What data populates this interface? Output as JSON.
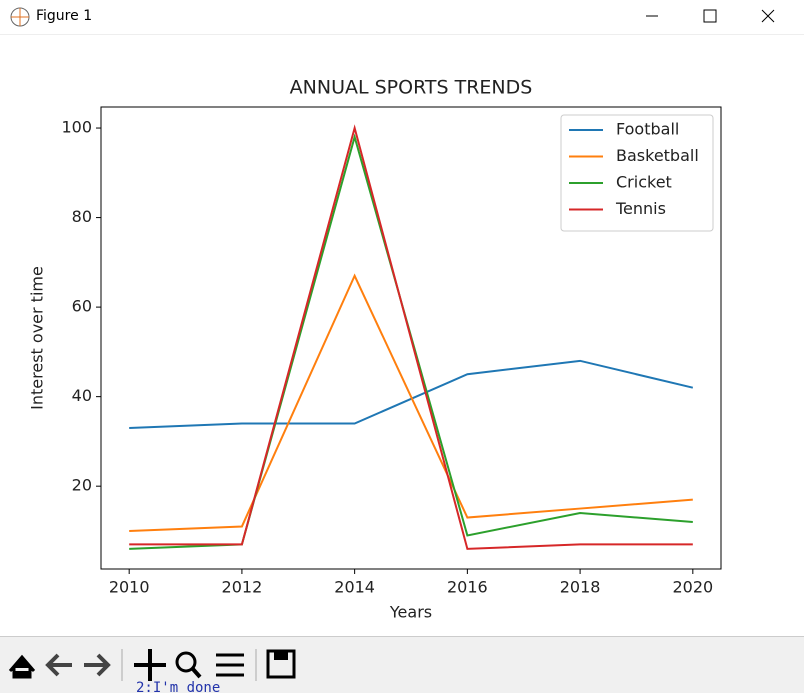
{
  "window": {
    "title": "Figure 1"
  },
  "chart_data": {
    "type": "line",
    "title": "ANNUAL SPORTS TRENDS",
    "x_label": "Years",
    "y_label": "Interest over time",
    "x": [
      2010,
      2012,
      2014,
      2016,
      2018,
      2020
    ],
    "series": [
      {
        "name": "Football",
        "color": "#1f77b4",
        "values": [
          33,
          34,
          34,
          45,
          48,
          42
        ]
      },
      {
        "name": "Basketball",
        "color": "#ff7f0e",
        "values": [
          10,
          11,
          67,
          13,
          15,
          17
        ]
      },
      {
        "name": "Cricket",
        "color": "#2ca02c",
        "values": [
          6,
          7,
          98,
          9,
          14,
          12
        ]
      },
      {
        "name": "Tennis",
        "color": "#d62728",
        "values": [
          7,
          7,
          100,
          6,
          7,
          7
        ]
      }
    ],
    "xlim": [
      2009.5,
      2020.5
    ],
    "xticks": [
      2010,
      2012,
      2014,
      2016,
      2018,
      2020
    ],
    "ylim": [
      1.5,
      104.7
    ],
    "yticks": [
      20,
      40,
      60,
      80,
      100
    ],
    "legend": "upper right"
  },
  "terminal_text": "2:I'm done"
}
